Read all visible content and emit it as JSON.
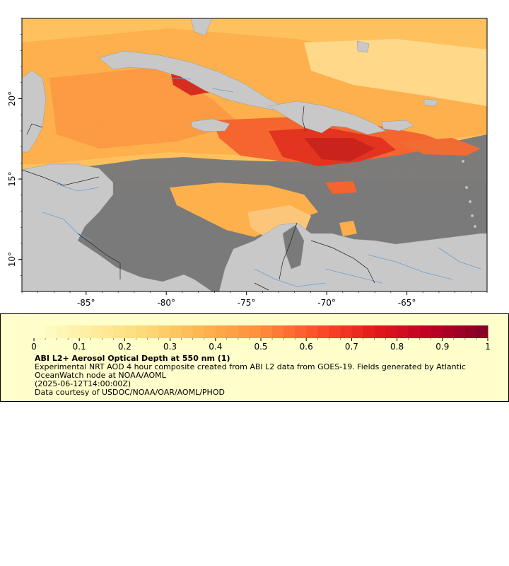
{
  "map": {
    "lon_range": [
      -89,
      -60
    ],
    "lat_range": [
      8,
      25
    ],
    "lon_ticks": [
      "-85°",
      "-80°",
      "-75°",
      "-70°",
      "-65°"
    ],
    "lon_tick_values": [
      -85,
      -80,
      -75,
      -70,
      -65
    ],
    "lat_ticks": [
      "20°",
      "15°",
      "10°"
    ],
    "lat_tick_values": [
      20,
      15,
      10
    ],
    "colors": {
      "ocean_nodata": "#7a7a7a",
      "land": "#c8c8c8",
      "rivers": "#6b9fd1",
      "borders": "#222222"
    }
  },
  "colorbar": {
    "ticks": [
      "0",
      "0.1",
      "0.2",
      "0.3",
      "0.4",
      "0.5",
      "0.6",
      "0.7",
      "0.8",
      "0.9",
      "1"
    ],
    "tick_values": [
      0,
      0.1,
      0.2,
      0.3,
      0.4,
      0.5,
      0.6,
      0.7,
      0.8,
      0.9,
      1
    ],
    "range": [
      0,
      1
    ],
    "colors": [
      "#ffffcc",
      "#ffeda0",
      "#fed976",
      "#feb24c",
      "#fd8d3c",
      "#fc4e2a",
      "#e31a1c",
      "#bd0026",
      "#800026"
    ]
  },
  "legend": {
    "title": "ABI L2+ Aerosol Optical Depth at 550 nm (1)",
    "line1": "Experimental NRT AOD 4 hour composite created from ABI L2 data from GOES-19. Fields generated by Atlantic",
    "line2": "OceanWatch node at NOAA/AOML",
    "line3": "(2025-06-12T14:00:00Z)",
    "line4": "Data courtesy of USDOC/NOAA/OAR/AOML/PHOD"
  }
}
